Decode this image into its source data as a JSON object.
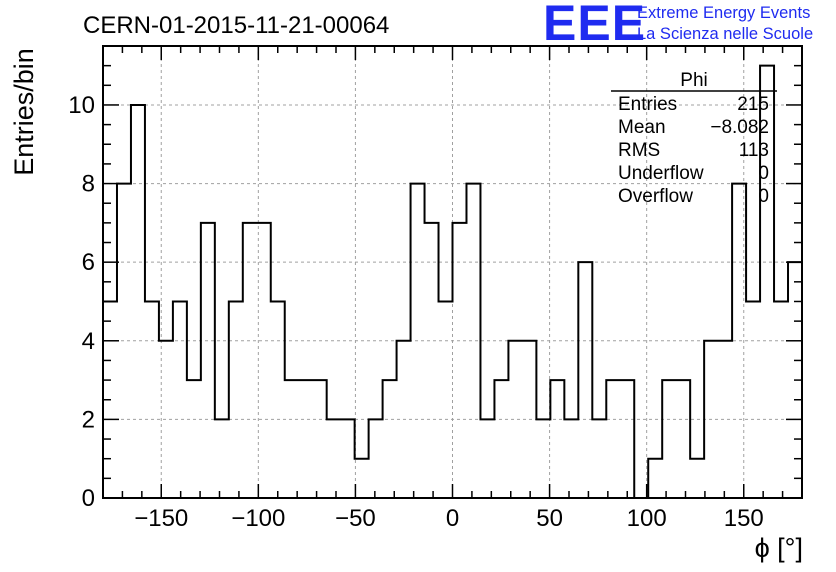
{
  "title": "CERN-01-2015-11-21-00064",
  "logo": {
    "mark": "EEE",
    "line1": "Extreme Energy Events",
    "line2": "La Scienza nelle Scuole",
    "color": "#1f2bf0"
  },
  "stats": {
    "title": "Phi",
    "rows": [
      {
        "label": "Entries",
        "value": "215"
      },
      {
        "label": "Mean",
        "value": "−8.082"
      },
      {
        "label": "RMS",
        "value": "113"
      },
      {
        "label": "Underflow",
        "value": "0"
      },
      {
        "label": "Overflow",
        "value": "0"
      }
    ]
  },
  "chart_data": {
    "type": "histogram",
    "title": "CERN-01-2015-11-21-00064",
    "xlabel": "ϕ [°]",
    "ylabel": "Entries/bin",
    "xlim": [
      -180,
      180
    ],
    "ylim": [
      0,
      11.5
    ],
    "x_ticks": [
      -150,
      -100,
      -50,
      0,
      50,
      100,
      150
    ],
    "x_tick_labels": [
      "−150",
      "−100",
      "−50",
      "0",
      "50",
      "100",
      "150"
    ],
    "y_ticks": [
      0,
      2,
      4,
      6,
      8,
      10
    ],
    "y_tick_labels": [
      "0",
      "2",
      "4",
      "6",
      "8",
      "10"
    ],
    "grid": true,
    "bin_edges_start": -180,
    "bin_width": 7.2,
    "values": [
      5,
      8,
      10,
      5,
      4,
      5,
      3,
      7,
      2,
      5,
      7,
      7,
      5,
      3,
      3,
      3,
      2,
      2,
      1,
      2,
      3,
      4,
      8,
      7,
      5,
      7,
      8,
      2,
      3,
      4,
      4,
      2,
      3,
      2,
      6,
      2,
      3,
      3,
      0,
      1,
      3,
      3,
      1,
      4,
      4,
      8,
      5,
      11,
      5,
      6
    ]
  }
}
